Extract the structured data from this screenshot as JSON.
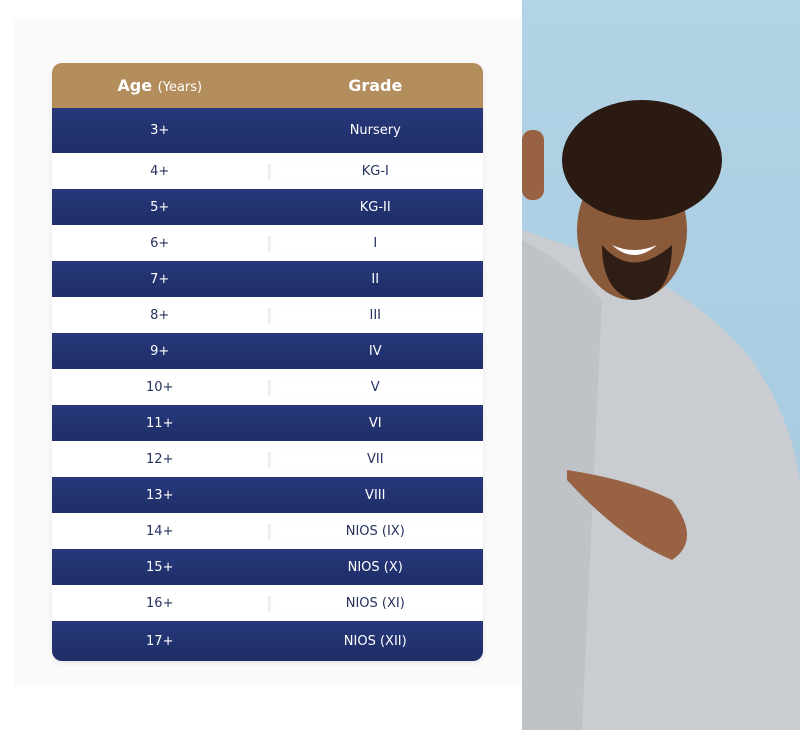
{
  "table": {
    "header": {
      "age": "Age",
      "age_unit": "(Years)",
      "grade": "Grade"
    },
    "rows": [
      {
        "age": "3+",
        "grade": "Nursery"
      },
      {
        "age": "4+",
        "grade": "KG-I"
      },
      {
        "age": "5+",
        "grade": "KG-II"
      },
      {
        "age": "6+",
        "grade": "I"
      },
      {
        "age": "7+",
        "grade": "II"
      },
      {
        "age": "8+",
        "grade": "III"
      },
      {
        "age": "9+",
        "grade": "IV"
      },
      {
        "age": "10+",
        "grade": "V"
      },
      {
        "age": "11+",
        "grade": "VI"
      },
      {
        "age": "12+",
        "grade": "VII"
      },
      {
        "age": "13+",
        "grade": "VIII"
      },
      {
        "age": "14+",
        "grade": "NIOS (IX)"
      },
      {
        "age": "15+",
        "grade": "NIOS (X)"
      },
      {
        "age": "16+",
        "grade": "NIOS (XI)"
      },
      {
        "age": "17+",
        "grade": "NIOS (XII)"
      }
    ],
    "colors": {
      "header": "#b48d5c",
      "navy": "#27387a"
    }
  }
}
